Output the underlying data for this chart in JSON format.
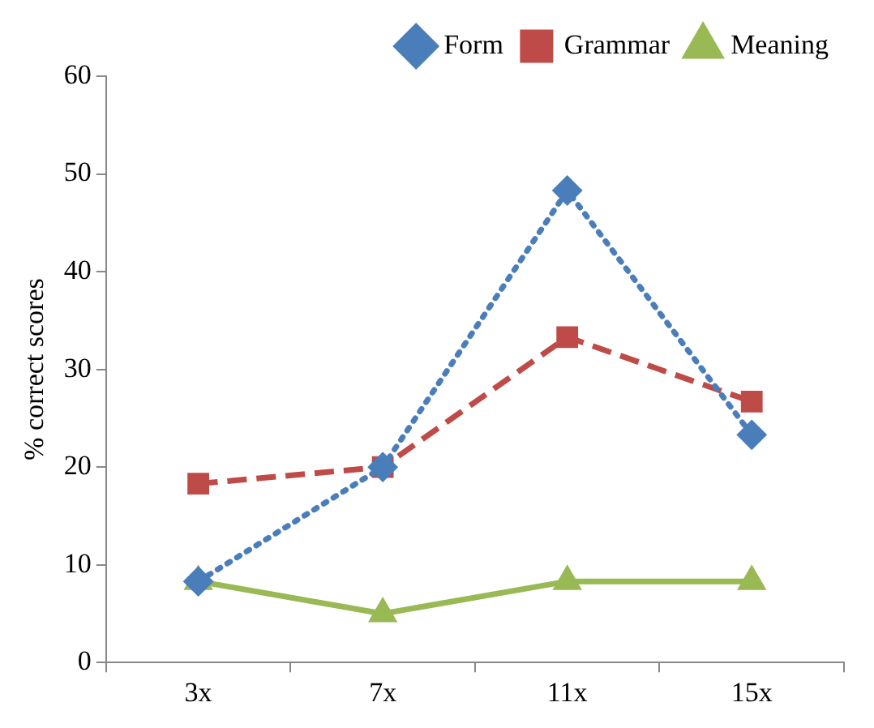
{
  "chart_data": {
    "type": "line",
    "ylabel": "% correct scores",
    "categories": [
      "3x",
      "7x",
      "11x",
      "15x"
    ],
    "series": [
      {
        "name": "Form",
        "color": "#4a7ebb",
        "marker": "diamond",
        "line_style": "dotted",
        "values": [
          8.3,
          20,
          48.3,
          23.3
        ]
      },
      {
        "name": "Grammar",
        "color": "#be4b48",
        "marker": "square",
        "line_style": "dashed",
        "values": [
          18.3,
          20,
          33.3,
          26.7
        ]
      },
      {
        "name": "Meaning",
        "color": "#98b954",
        "marker": "triangle",
        "line_style": "solid",
        "values": [
          8.3,
          5,
          8.3,
          8.3
        ]
      }
    ],
    "ylim": [
      0,
      60
    ],
    "yticks": [
      0,
      10,
      20,
      30,
      40,
      50,
      60
    ],
    "grid": false,
    "legend": "top"
  }
}
